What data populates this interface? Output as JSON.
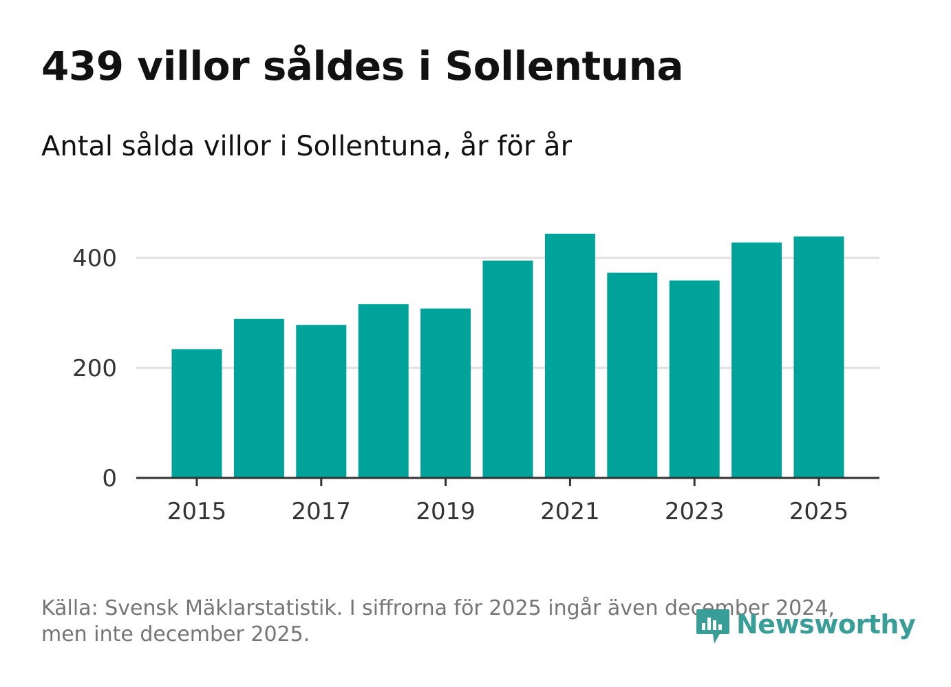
{
  "header": {
    "title": "439 villor såldes i Sollentuna",
    "subtitle": "Antal sålda villor i Sollentuna, år för år"
  },
  "footer": {
    "source_line1": "Källa: Svensk Mäklarstatistik. I siffrorna för 2025 ingår även december 2024,",
    "source_line2": "men inte december 2025."
  },
  "brand": {
    "name": "Newsworthy",
    "color": "#3a9e98"
  },
  "colors": {
    "bar": "#00a39a",
    "grid": "#e0e0e0",
    "axis": "#333333",
    "tick_text": "#333333"
  },
  "chart_data": {
    "type": "bar",
    "title": "439 villor såldes i Sollentuna",
    "subtitle": "Antal sålda villor i Sollentuna, år för år",
    "xlabel": "",
    "ylabel": "",
    "categories": [
      2015,
      2016,
      2017,
      2018,
      2019,
      2020,
      2021,
      2022,
      2023,
      2024,
      2025
    ],
    "values": [
      234,
      289,
      278,
      316,
      308,
      395,
      444,
      373,
      359,
      428,
      439
    ],
    "x_tick_labels": [
      "2015",
      "2017",
      "2019",
      "2021",
      "2023",
      "2025"
    ],
    "y_ticks": [
      0,
      200,
      400
    ],
    "y_tick_labels": [
      "0",
      "200",
      "400"
    ],
    "ylim": [
      0,
      470
    ],
    "grid": true,
    "legend": "none"
  }
}
